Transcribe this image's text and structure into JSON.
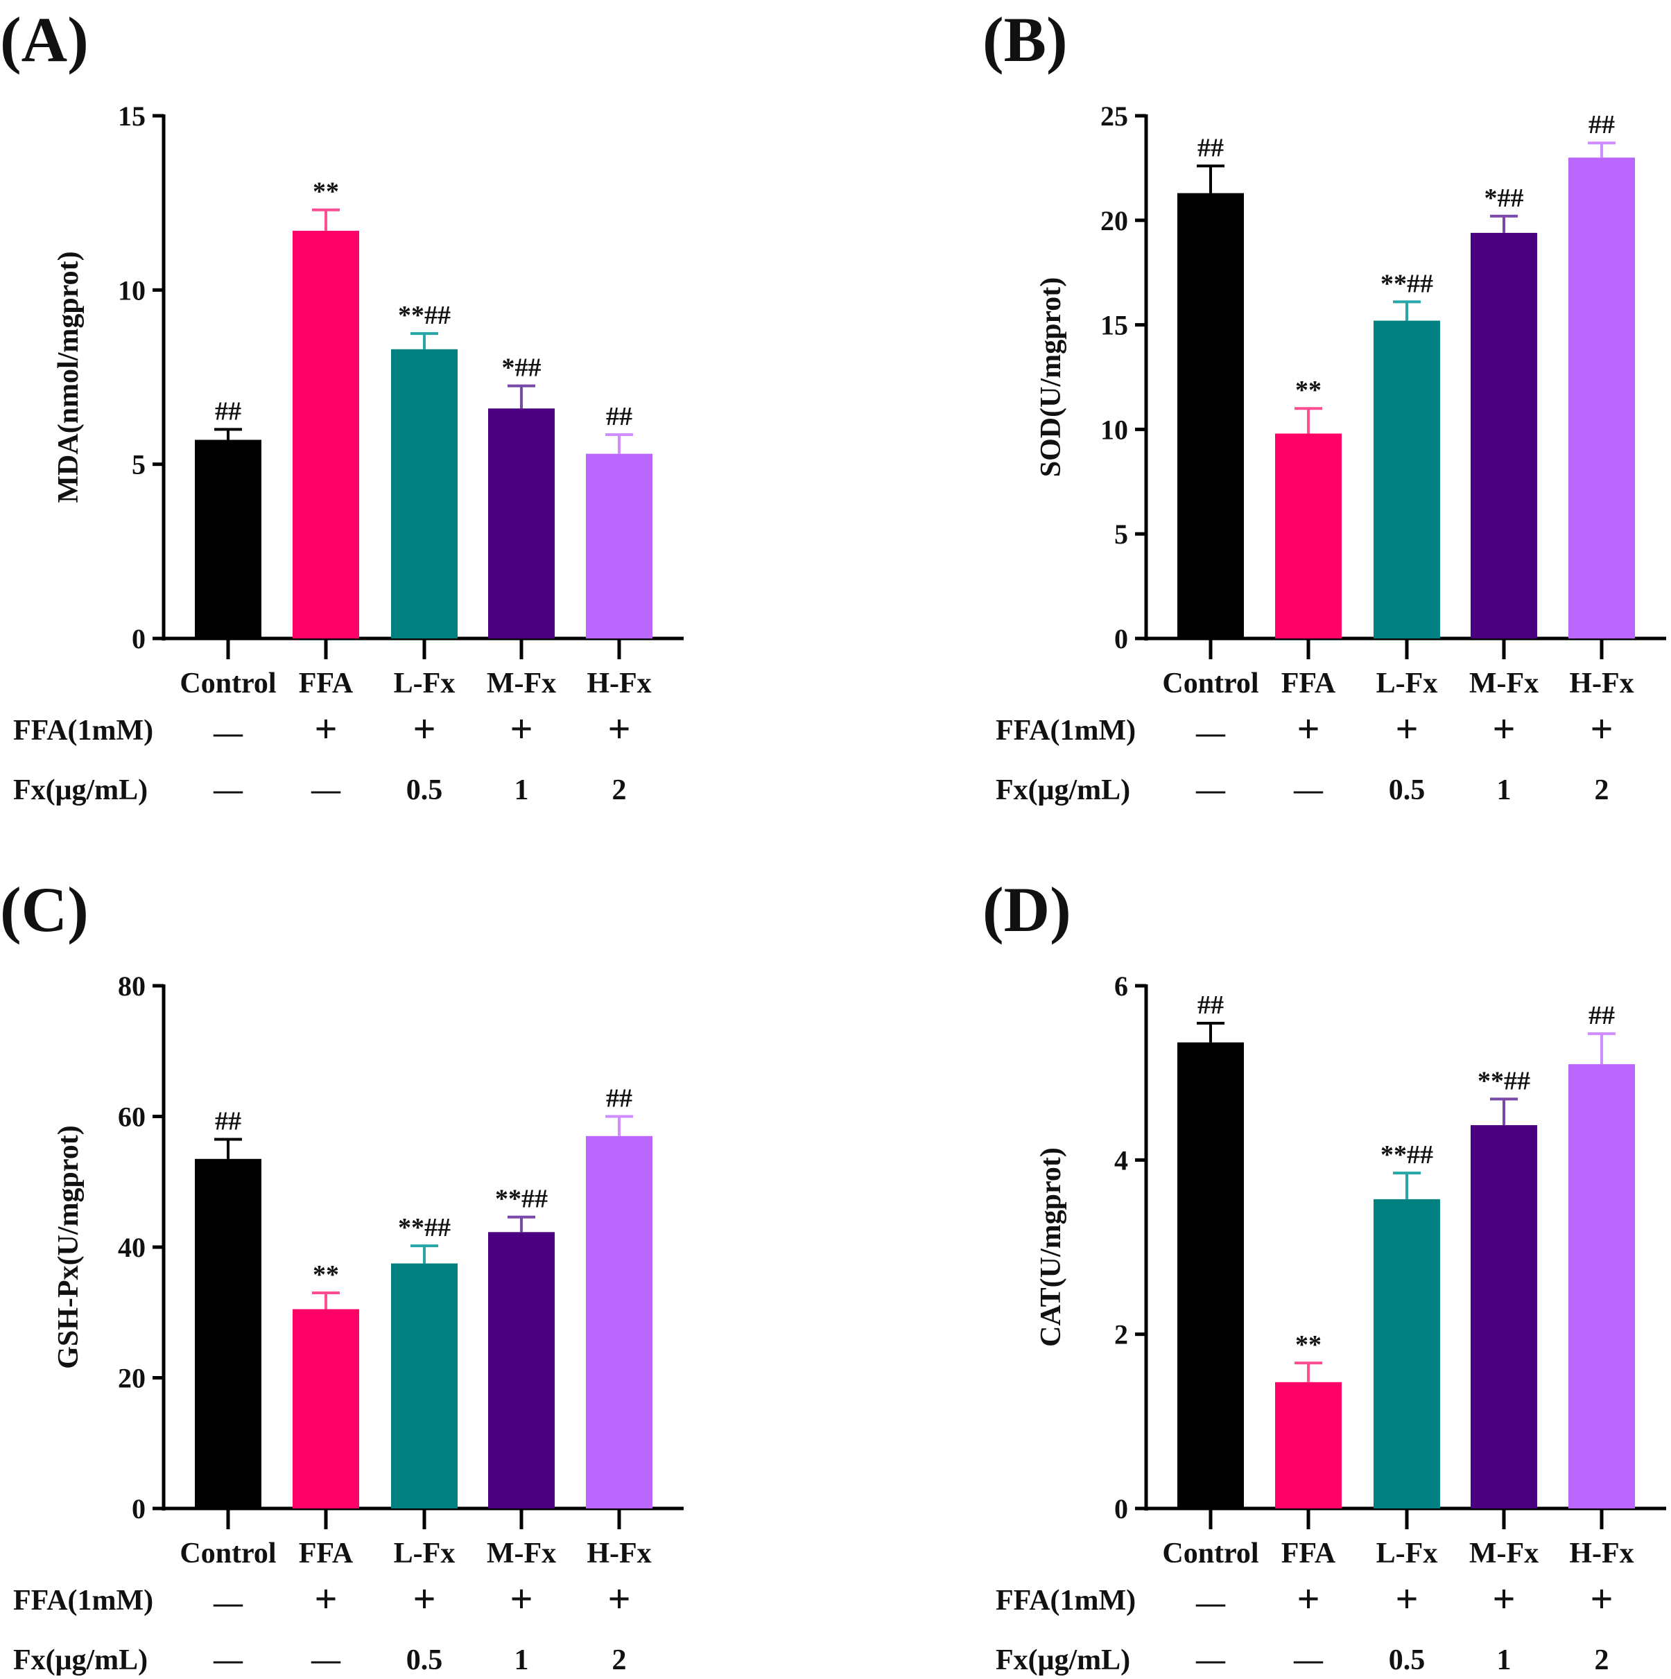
{
  "colors": [
    "#000000",
    "#ff0066",
    "#008080",
    "#4b0082",
    "#bb66ff"
  ],
  "error_colors": [
    "#000000",
    "#ff4d94",
    "#26a6a6",
    "#7a48a8",
    "#cf8dff"
  ],
  "treatment_rows": {
    "ffa_label": "FFA(1mM)",
    "ffa_values": [
      "—",
      "+",
      "+",
      "+",
      "+"
    ],
    "fx_label": "Fx(μg/mL)",
    "fx_values": [
      "—",
      "—",
      "0.5",
      "1",
      "2"
    ]
  },
  "chart_data": [
    {
      "panel": "(A)",
      "type": "bar",
      "categories": [
        "Control",
        "FFA",
        "L-Fx",
        "M-Fx",
        "H-Fx"
      ],
      "values": [
        5.7,
        11.7,
        8.3,
        6.6,
        5.3
      ],
      "errors": [
        0.3,
        0.6,
        0.45,
        0.65,
        0.55
      ],
      "annotations": [
        "##",
        "**",
        "**##",
        "*##",
        "##"
      ],
      "ylabel": "MDA(nmol/mgprot)",
      "ylim": [
        0,
        15
      ],
      "yticks": [
        0,
        5,
        10,
        15
      ]
    },
    {
      "panel": "(B)",
      "type": "bar",
      "categories": [
        "Control",
        "FFA",
        "L-Fx",
        "M-Fx",
        "H-Fx"
      ],
      "values": [
        21.3,
        9.8,
        15.2,
        19.4,
        23.0
      ],
      "errors": [
        1.3,
        1.2,
        0.9,
        0.8,
        0.7
      ],
      "annotations": [
        "##",
        "**",
        "**##",
        "*##",
        "##"
      ],
      "ylabel": "SOD(U/mgprot)",
      "ylim": [
        0,
        25
      ],
      "yticks": [
        0,
        5,
        10,
        15,
        20,
        25
      ]
    },
    {
      "panel": "(C)",
      "type": "bar",
      "categories": [
        "Control",
        "FFA",
        "L-Fx",
        "M-Fx",
        "H-Fx"
      ],
      "values": [
        53.5,
        30.5,
        37.5,
        42.3,
        57.0
      ],
      "errors": [
        3.0,
        2.5,
        2.7,
        2.3,
        3.0
      ],
      "annotations": [
        "##",
        "**",
        "**##",
        "**##",
        "##"
      ],
      "ylabel": "GSH-Px(U/mgprot)",
      "ylim": [
        0,
        80
      ],
      "yticks": [
        0,
        20,
        40,
        60,
        80
      ]
    },
    {
      "panel": "(D)",
      "type": "bar",
      "categories": [
        "Control",
        "FFA",
        "L-Fx",
        "M-Fx",
        "H-Fx"
      ],
      "values": [
        5.35,
        1.45,
        3.55,
        4.4,
        5.1
      ],
      "errors": [
        0.22,
        0.22,
        0.3,
        0.3,
        0.35
      ],
      "annotations": [
        "##",
        "**",
        "**##",
        "**##",
        "##"
      ],
      "ylabel": "CAT(U/mgprot)",
      "ylim": [
        0,
        6
      ],
      "yticks": [
        0,
        2,
        4,
        6
      ]
    }
  ]
}
